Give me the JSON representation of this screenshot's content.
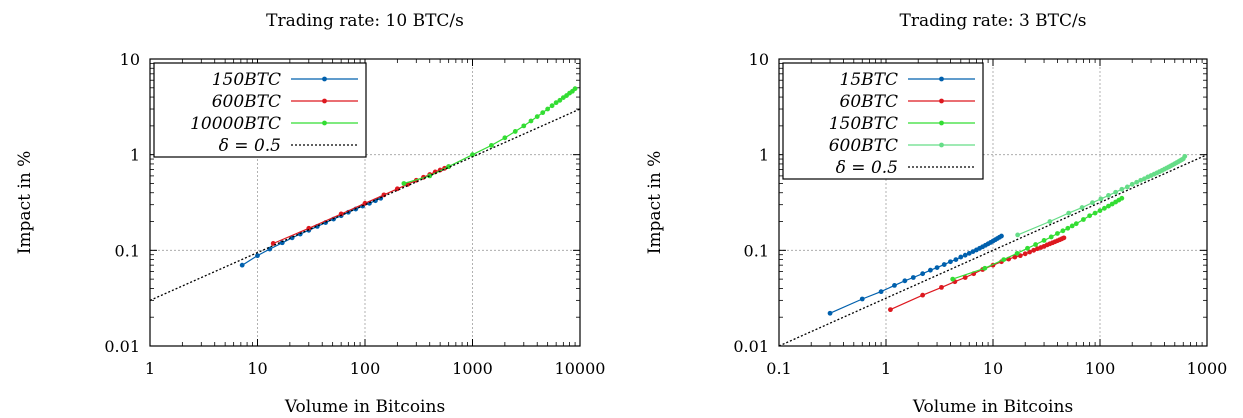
{
  "chart_data": [
    {
      "type": "line",
      "title": "Trading rate: 10 BTC/s",
      "xlabel": "Volume in Bitcoins",
      "ylabel": "Impact in %",
      "xscale": "log",
      "yscale": "log",
      "xlim": [
        1,
        10000
      ],
      "ylim": [
        0.01,
        10
      ],
      "xticks": [
        "1",
        "10",
        "100",
        "1000",
        "10000"
      ],
      "yticks": [
        "0.01",
        "0.1",
        "1",
        "10"
      ],
      "grid": true,
      "legend_position": "top-left",
      "series": [
        {
          "name": "150BTC",
          "color": "#0060ad",
          "x": [
            7.2,
            10,
            13,
            17,
            21,
            25,
            30,
            36,
            43,
            51,
            60,
            70,
            82,
            95,
            110,
            125,
            140
          ],
          "y": [
            0.07,
            0.088,
            0.103,
            0.12,
            0.135,
            0.148,
            0.162,
            0.178,
            0.195,
            0.212,
            0.23,
            0.25,
            0.27,
            0.29,
            0.31,
            0.33,
            0.35
          ]
        },
        {
          "name": "600BTC",
          "color": "#dd181f",
          "x": [
            14,
            30,
            60,
            100,
            150,
            200,
            250,
            300,
            350,
            400,
            450,
            500,
            550,
            600
          ],
          "y": [
            0.118,
            0.17,
            0.24,
            0.31,
            0.38,
            0.44,
            0.49,
            0.54,
            0.58,
            0.62,
            0.66,
            0.69,
            0.72,
            0.75
          ]
        },
        {
          "name": "10000BTC",
          "color": "#33dd33",
          "x": [
            230,
            400,
            600,
            1000,
            1500,
            2000,
            2500,
            3000,
            3500,
            4000,
            4500,
            5000,
            5500,
            6000,
            6500,
            7000,
            7500,
            8000,
            8500,
            9000
          ],
          "y": [
            0.5,
            0.6,
            0.75,
            1.0,
            1.25,
            1.5,
            1.75,
            2.0,
            2.25,
            2.5,
            2.75,
            3.0,
            3.25,
            3.5,
            3.7,
            3.95,
            4.15,
            4.4,
            4.6,
            4.9
          ]
        },
        {
          "name": "δ = 0.5",
          "color": "#000000",
          "dashed": true,
          "reference": true,
          "x": [
            1,
            10000
          ],
          "y": [
            0.03,
            3.0
          ]
        }
      ]
    },
    {
      "type": "line",
      "title": "Trading rate: 3 BTC/s",
      "xlabel": "Volume in Bitcoins",
      "ylabel": "Impact in %",
      "xscale": "log",
      "yscale": "log",
      "xlim": [
        0.1,
        1000
      ],
      "ylim": [
        0.01,
        10
      ],
      "xticks": [
        "0.1",
        "1",
        "10",
        "100",
        "1000"
      ],
      "yticks": [
        "0.01",
        "0.1",
        "1",
        "10"
      ],
      "grid": true,
      "legend_position": "top-left",
      "series": [
        {
          "name": "15BTC",
          "color": "#0060ad",
          "x": [
            0.3,
            0.6,
            0.9,
            1.2,
            1.5,
            1.8,
            2.2,
            2.6,
            3.0,
            3.5,
            4.0,
            4.5,
            5.0,
            5.5,
            6.0,
            6.5,
            7.0,
            7.5,
            8.0,
            8.5,
            9.0,
            9.5,
            10,
            10.5,
            11,
            11.5,
            12
          ],
          "y": [
            0.022,
            0.031,
            0.037,
            0.043,
            0.048,
            0.052,
            0.057,
            0.062,
            0.066,
            0.071,
            0.076,
            0.08,
            0.085,
            0.089,
            0.093,
            0.097,
            0.101,
            0.105,
            0.109,
            0.113,
            0.117,
            0.121,
            0.125,
            0.129,
            0.133,
            0.137,
            0.141
          ]
        },
        {
          "name": "60BTC",
          "color": "#dd181f",
          "x": [
            1.1,
            2.2,
            3.3,
            4.4,
            5.5,
            6.6,
            8,
            10,
            12,
            14,
            16,
            18,
            20,
            22,
            24,
            26,
            28,
            30,
            32,
            34,
            36,
            38,
            40,
            42,
            44,
            46
          ],
          "y": [
            0.024,
            0.034,
            0.041,
            0.047,
            0.052,
            0.057,
            0.063,
            0.07,
            0.076,
            0.081,
            0.085,
            0.088,
            0.092,
            0.096,
            0.1,
            0.104,
            0.107,
            0.11,
            0.114,
            0.117,
            0.12,
            0.123,
            0.126,
            0.129,
            0.132,
            0.135
          ]
        },
        {
          "name": "150BTC",
          "color": "#33dd33",
          "x": [
            4.2,
            8.4,
            12.6,
            16.8,
            21,
            25,
            30,
            35,
            40,
            45,
            50,
            55,
            60,
            70,
            80,
            90,
            100,
            110,
            120,
            130,
            140,
            150,
            160
          ],
          "y": [
            0.05,
            0.065,
            0.08,
            0.093,
            0.105,
            0.115,
            0.127,
            0.138,
            0.15,
            0.16,
            0.17,
            0.18,
            0.19,
            0.21,
            0.23,
            0.245,
            0.26,
            0.275,
            0.29,
            0.305,
            0.32,
            0.335,
            0.35
          ]
        },
        {
          "name": "600BTC",
          "color": "#66dd88",
          "x": [
            17,
            34,
            51,
            68,
            85,
            102,
            120,
            140,
            160,
            180,
            200,
            220,
            240,
            260,
            280,
            300,
            320,
            340,
            360,
            380,
            400,
            420,
            440,
            460,
            480,
            500,
            520,
            540,
            560,
            580,
            600,
            620
          ],
          "y": [
            0.145,
            0.2,
            0.245,
            0.28,
            0.315,
            0.345,
            0.375,
            0.405,
            0.435,
            0.46,
            0.49,
            0.515,
            0.54,
            0.56,
            0.585,
            0.605,
            0.625,
            0.645,
            0.665,
            0.685,
            0.705,
            0.725,
            0.745,
            0.765,
            0.785,
            0.805,
            0.825,
            0.845,
            0.865,
            0.885,
            0.905,
            0.96
          ]
        },
        {
          "name": "δ = 0.5",
          "color": "#000000",
          "dashed": true,
          "reference": true,
          "x": [
            0.1,
            1000
          ],
          "y": [
            0.01,
            1.0
          ]
        }
      ]
    }
  ]
}
